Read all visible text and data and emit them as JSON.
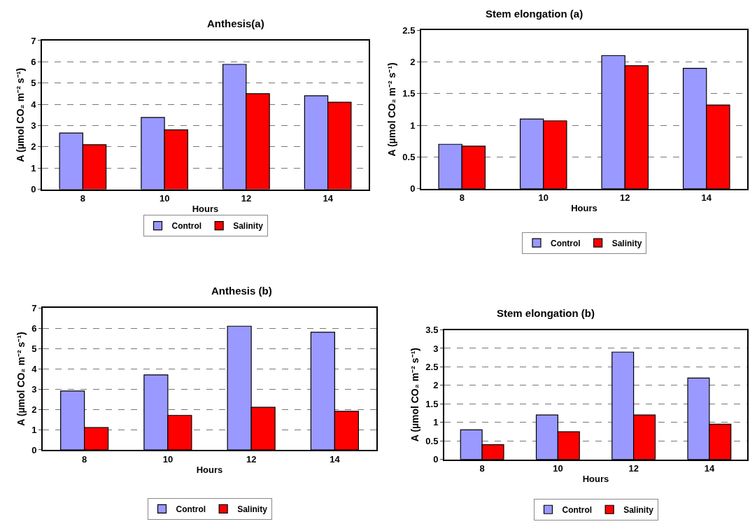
{
  "chart_data": [
    {
      "type": "bar",
      "title": "Anthesis(a)",
      "xlabel": "Hours",
      "ylabel": "A (µmol CO₂ m⁻² s⁻¹)",
      "categories": [
        "8",
        "10",
        "12",
        "14"
      ],
      "ylim": [
        0,
        7
      ],
      "yticks": [
        0,
        1,
        2,
        3,
        4,
        5,
        6,
        7
      ],
      "grid": "y",
      "legend": "bottom",
      "series": [
        {
          "name": "Control",
          "color": "#9999ff",
          "values": [
            2.65,
            3.38,
            5.88,
            4.4
          ]
        },
        {
          "name": "Salinity",
          "color": "#ff0000",
          "values": [
            2.1,
            2.8,
            4.5,
            4.1
          ]
        }
      ]
    },
    {
      "type": "bar",
      "title": "Stem elongation (a)",
      "xlabel": "Hours",
      "ylabel": "A (µmol CO₂ m⁻² s⁻¹)",
      "categories": [
        "8",
        "10",
        "12",
        "14"
      ],
      "ylim": [
        0,
        2.5
      ],
      "yticks": [
        0,
        0.5,
        1,
        1.5,
        2,
        2.5
      ],
      "grid": "y",
      "legend": "bottom",
      "series": [
        {
          "name": "Control",
          "color": "#9999ff",
          "values": [
            0.7,
            1.1,
            2.1,
            1.9
          ]
        },
        {
          "name": "Salinity",
          "color": "#ff0000",
          "values": [
            0.67,
            1.07,
            1.94,
            1.32
          ]
        }
      ]
    },
    {
      "type": "bar",
      "title": "Anthesis (b)",
      "xlabel": "Hours",
      "ylabel": "A (µmol CO₂ m⁻² s⁻¹)",
      "categories": [
        "8",
        "10",
        "12",
        "14"
      ],
      "ylim": [
        0,
        7
      ],
      "yticks": [
        0,
        1,
        2,
        3,
        4,
        5,
        6,
        7
      ],
      "grid": "y",
      "legend": "bottom",
      "series": [
        {
          "name": "Control",
          "color": "#9999ff",
          "values": [
            2.9,
            3.7,
            6.1,
            5.8
          ]
        },
        {
          "name": "Salinity",
          "color": "#ff0000",
          "values": [
            1.1,
            1.7,
            2.1,
            1.9
          ]
        }
      ]
    },
    {
      "type": "bar",
      "title": "Stem elongation (b)",
      "xlabel": "Hours",
      "ylabel": "A (µmol CO₂ m⁻² s⁻¹)",
      "categories": [
        "8",
        "10",
        "12",
        "14"
      ],
      "ylim": [
        0,
        3.5
      ],
      "yticks": [
        0,
        0.5,
        1,
        1.5,
        2,
        2.5,
        3,
        3.5
      ],
      "grid": "y",
      "legend": "bottom",
      "series": [
        {
          "name": "Control",
          "color": "#9999ff",
          "values": [
            0.8,
            1.2,
            2.9,
            2.2
          ]
        },
        {
          "name": "Salinity",
          "color": "#ff0000",
          "values": [
            0.4,
            0.75,
            1.2,
            0.95
          ]
        }
      ]
    }
  ]
}
